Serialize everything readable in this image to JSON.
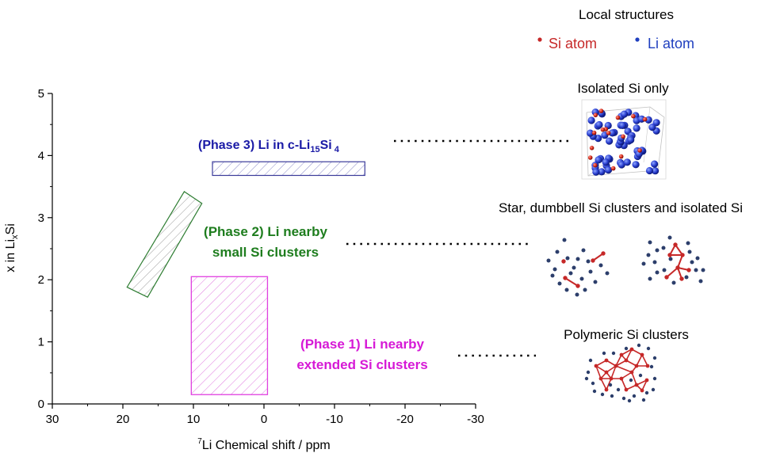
{
  "chart_data": {
    "type": "diagram",
    "xlabel": {
      "sup": "7",
      "main": "Li Chemical shift / ppm"
    },
    "ylabel": {
      "pre": "x in Li",
      "sub": "x",
      "post": "Si"
    },
    "xlim": [
      30,
      -30
    ],
    "ylim": [
      0,
      5
    ],
    "x_tick_labels": [
      "30",
      "20",
      "10",
      "0",
      "-10",
      "-20",
      "-30"
    ],
    "y_tick_labels": [
      "0",
      "1",
      "2",
      "3",
      "4",
      "5"
    ],
    "regions": [
      {
        "name": "phase1",
        "shape": "rect",
        "x": [
          10.3,
          -0.5
        ],
        "y": [
          0.15,
          2.05
        ],
        "color": "#e040e0"
      },
      {
        "name": "phase2",
        "shape": "tilted-rect",
        "corners": [
          [
            11.3,
            3.42
          ],
          [
            19.4,
            1.88
          ],
          [
            16.5,
            1.72
          ],
          [
            8.8,
            3.23
          ]
        ],
        "color": "#2e7d32"
      },
      {
        "name": "phase3",
        "shape": "rect",
        "x": [
          7.3,
          -14.3
        ],
        "y": [
          3.68,
          3.9
        ],
        "color": "#3b3b9a"
      }
    ]
  },
  "labels": {
    "phase3": {
      "pre": "(Phase 3) Li in c-Li",
      "sub1": "15",
      "mid": "Si",
      "sub2": " 4",
      "color": "#1a1aa6"
    },
    "phase2": {
      "line1": "(Phase 2) Li nearby",
      "line2": "small Si clusters",
      "color": "#1e7d1e"
    },
    "phase1": {
      "line1": "(Phase 1) Li nearby",
      "line2": "extended Si clusters",
      "color": "#d619d6"
    }
  },
  "legend": {
    "title": "Local structures",
    "si": {
      "label": "Si atom",
      "color": "#c62828"
    },
    "li": {
      "label": "Li atom",
      "color": "#1f3fbf"
    }
  },
  "structures": {
    "isolated": "Isolated Si only",
    "star": "Star, dumbbell Si clusters and isolated Si",
    "polymeric": "Polymeric Si clusters"
  },
  "colors": {
    "si_red": "#c62828",
    "li_blue": "#1f3fbf",
    "li_navy": "#2c3e6b",
    "axis": "#000000"
  }
}
